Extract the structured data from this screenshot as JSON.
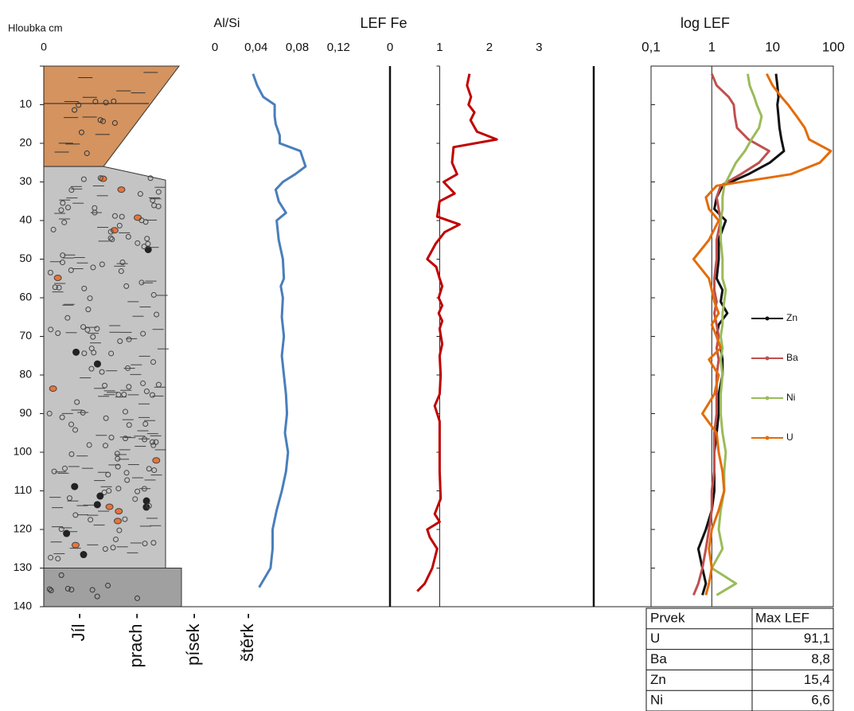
{
  "chart_data": [
    {
      "type": "lithology",
      "title": "Hloubka cm",
      "ylim": [
        0,
        140
      ],
      "yticks": [
        0,
        10,
        20,
        30,
        40,
        50,
        60,
        70,
        80,
        90,
        100,
        110,
        120,
        130,
        140
      ],
      "layers": [
        {
          "top": 0,
          "bottom": 26,
          "color": "#d4935f"
        },
        {
          "top": 26,
          "bottom": 130,
          "color": "#c4c4c4"
        },
        {
          "top": 130,
          "bottom": 140,
          "color": "#a0a0a0"
        }
      ],
      "grain_labels": [
        "Jíl -",
        "prach -",
        "písek -",
        "štěrk -"
      ]
    },
    {
      "type": "profile",
      "title": "Al/Si",
      "ylim": [
        0,
        140
      ],
      "xlim": [
        0,
        0.17
      ],
      "xticks": [
        0,
        {
          "value": 0.04,
          "label": "0,04"
        },
        {
          "value": 0.08,
          "label": "0,08"
        },
        {
          "value": 0.12,
          "label": "0,12"
        }
      ],
      "color": "#4a7ebb",
      "depth": [
        2,
        5,
        8,
        10,
        13,
        15,
        18,
        20,
        22,
        26,
        28,
        30,
        32,
        35,
        38,
        40,
        45,
        50,
        55,
        57,
        60,
        65,
        70,
        75,
        80,
        85,
        90,
        95,
        100,
        105,
        110,
        115,
        120,
        125,
        130,
        135
      ],
      "values": [
        0.037,
        0.041,
        0.047,
        0.058,
        0.058,
        0.059,
        0.063,
        0.063,
        0.083,
        0.088,
        0.078,
        0.066,
        0.059,
        0.062,
        0.069,
        0.06,
        0.062,
        0.066,
        0.067,
        0.064,
        0.066,
        0.065,
        0.067,
        0.065,
        0.067,
        0.069,
        0.07,
        0.068,
        0.071,
        0.069,
        0.065,
        0.06,
        0.056,
        0.056,
        0.054,
        0.043
      ]
    },
    {
      "type": "profile",
      "title": "LEF Fe",
      "ylim": [
        0,
        140
      ],
      "xlim": [
        0,
        4.1
      ],
      "xticks": [
        0,
        1,
        2,
        3
      ],
      "gridlines": [
        1
      ],
      "color": "#c00000",
      "depth": [
        2,
        5,
        8,
        10,
        12,
        14,
        17,
        19,
        21,
        25,
        28,
        30,
        33,
        35,
        39,
        41,
        43,
        46,
        50,
        52,
        55,
        57,
        60,
        62,
        64,
        66,
        68,
        72,
        75,
        80,
        85,
        88,
        92,
        98,
        105,
        112,
        116,
        118,
        120,
        122,
        125,
        130,
        134,
        136
      ],
      "values": [
        1.6,
        1.55,
        1.63,
        1.58,
        1.7,
        1.62,
        1.75,
        2.15,
        1.28,
        1.25,
        1.35,
        1.08,
        1.3,
        1.0,
        0.95,
        1.4,
        1.1,
        0.92,
        0.75,
        0.93,
        1.0,
        1.05,
        0.98,
        1.05,
        0.98,
        1.05,
        1.0,
        1.05,
        1.0,
        1.02,
        1.0,
        0.9,
        1.0,
        1.0,
        1.0,
        1.02,
        0.9,
        1.0,
        0.75,
        0.8,
        0.95,
        0.85,
        0.7,
        0.55
      ]
    },
    {
      "type": "profile",
      "title": "log LEF",
      "ylim": [
        0,
        140
      ],
      "xlim": [
        0.1,
        100
      ],
      "log": true,
      "xticks": [
        {
          "value": 0.1,
          "label": "0,1"
        },
        1,
        10,
        100
      ],
      "gridlines": [
        1
      ],
      "legend": "right",
      "depth": [
        2,
        5,
        8,
        10,
        13,
        16,
        19,
        22,
        25,
        28,
        31,
        34,
        37,
        40,
        45,
        50,
        55,
        58,
        61,
        64,
        67,
        70,
        73,
        76,
        80,
        85,
        90,
        95,
        100,
        105,
        110,
        115,
        120,
        125,
        130,
        134,
        137
      ],
      "series": [
        {
          "name": "Zn",
          "color": "#111111",
          "values": [
            11.4,
            12,
            12.5,
            12,
            12.5,
            13,
            14,
            15.4,
            9,
            4,
            1.5,
            1.2,
            1.1,
            1.7,
            1.3,
            1.3,
            1.2,
            1.5,
            1.4,
            1.8,
            1.3,
            1.2,
            1.4,
            1.5,
            1.5,
            1.3,
            1.3,
            1.2,
            1.1,
            1.1,
            1.1,
            1.0,
            0.8,
            0.6,
            0.7,
            0.8,
            0.7
          ]
        },
        {
          "name": "Ba",
          "color": "#c0504d",
          "values": [
            1.0,
            1.2,
            1.9,
            2.3,
            2.4,
            2.6,
            4,
            8.8,
            6,
            3,
            1.4,
            1.2,
            1.3,
            1.4,
            1.2,
            1.2,
            1.1,
            1.1,
            1.2,
            1.1,
            1.2,
            1.3,
            1.2,
            1.3,
            1.2,
            1.2,
            1.2,
            1.1,
            1.1,
            1.1,
            1.0,
            1.0,
            0.9,
            0.8,
            0.7,
            0.6,
            0.5
          ]
        },
        {
          "name": "Ni",
          "color": "#9bbb59",
          "values": [
            3.9,
            4.2,
            5,
            5.5,
            6.6,
            6,
            4.5,
            3.5,
            2.5,
            2,
            1.6,
            1.5,
            1.5,
            1.4,
            1.4,
            1.5,
            1.5,
            1.7,
            1.6,
            1.5,
            1.5,
            1.4,
            1.5,
            1.4,
            1.5,
            1.4,
            1.4,
            1.5,
            1.7,
            1.6,
            1.6,
            1.4,
            1.3,
            1.5,
            1.0,
            2.5,
            1.2
          ]
        },
        {
          "name": "U",
          "color": "#e36c09",
          "values": [
            8,
            10,
            14,
            18,
            25,
            34,
            40,
            91.1,
            60,
            20,
            1.2,
            0.8,
            0.9,
            1.3,
            0.9,
            0.5,
            0.9,
            1.0,
            1.1,
            1.3,
            1.0,
            1.2,
            1.4,
            0.9,
            1.3,
            1.1,
            0.7,
            1.2,
            1.3,
            1.5,
            1.6,
            1.3,
            1.0,
            0.9,
            1.0,
            0.9,
            0.8
          ]
        }
      ]
    }
  ],
  "table": {
    "header": [
      "Prvek",
      "Max LEF"
    ],
    "rows": [
      [
        "U",
        "91,1"
      ],
      [
        "Ba",
        "8,8"
      ],
      [
        "Zn",
        "15,4"
      ],
      [
        "Ni",
        "6,6"
      ]
    ]
  }
}
